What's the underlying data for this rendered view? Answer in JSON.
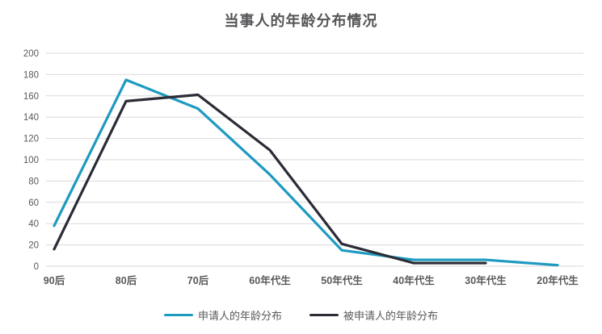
{
  "chart_data": {
    "type": "line",
    "title": "当事人的年龄分布情况",
    "categories": [
      "90后",
      "80后",
      "70后",
      "60年代生",
      "50年代生",
      "40年代生",
      "30年代生",
      "20年代生"
    ],
    "series": [
      {
        "name": "申请人的年龄分布",
        "color": "#1E9AC1",
        "values": [
          38,
          175,
          148,
          86,
          15,
          6,
          6,
          1
        ]
      },
      {
        "name": "被申请人的年龄分布",
        "color": "#2B2C36",
        "values": [
          16,
          155,
          161,
          109,
          21,
          3,
          3,
          null
        ]
      }
    ],
    "xlabel": "",
    "ylabel": "",
    "ylim": [
      0,
      200
    ],
    "ytick_step": 20,
    "grid": "horizontal",
    "legend_position": "bottom",
    "colors": {
      "grid_line": "#D9D9D9",
      "axis_text": "#595959",
      "title_text": "#555557",
      "background": "#FFFFFF"
    }
  }
}
